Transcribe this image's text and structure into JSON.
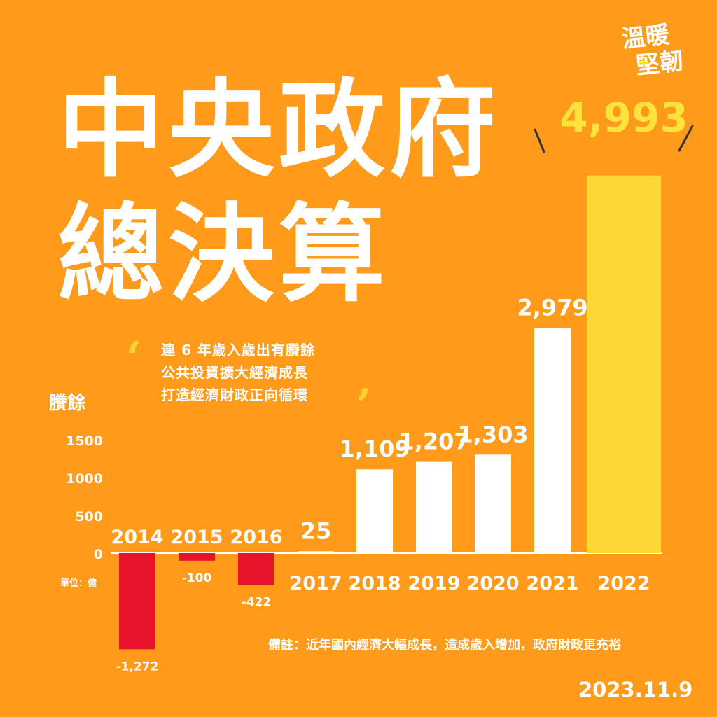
{
  "header": {
    "title_line1": "中央政府",
    "title_line2": "總決算"
  },
  "logo": {
    "line1": "溫暖",
    "line2": "堅韌",
    "plus": "+"
  },
  "quote": {
    "open_mark": "‘",
    "close_mark": "’",
    "lines": [
      "連 6 年歲入歲出有賸餘",
      "公共投資擴大經濟成長",
      "打造經濟財政正向循環"
    ]
  },
  "footer": {
    "unit": "單位：億",
    "note": "備註：近年國內經濟大幅成長，造成歲入增加，政府財政更充裕",
    "date": "2023.11.9"
  },
  "colors": {
    "background": "#FF9A1A",
    "positive_bar": "#FFFFFF",
    "negative_bar": "#E8142B",
    "highlight_bar": "#FDD835",
    "highlight_label": "#FFE23B"
  },
  "chart_data": {
    "type": "bar",
    "ylabel": "賸餘",
    "yticks": [
      "1500",
      "1000",
      "500",
      "0"
    ],
    "ylim": [
      -1300,
      5000
    ],
    "categories": [
      "2014",
      "2015",
      "2016",
      "2017",
      "2018",
      "2019",
      "2020",
      "2021",
      "2022"
    ],
    "values": [
      -1272,
      -100,
      -422,
      25,
      1109,
      1207,
      1303,
      2979,
      4993
    ],
    "value_labels": [
      "-1,272",
      "-100",
      "-422",
      "25",
      "1,109",
      "1,207",
      "1,303",
      "2,979",
      "4,993"
    ],
    "highlight": "2022"
  }
}
